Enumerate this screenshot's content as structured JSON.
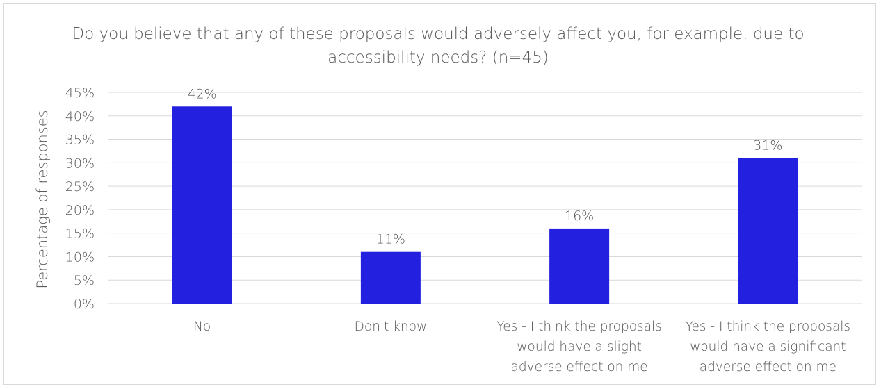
{
  "chart_data": {
    "type": "bar",
    "title": "Do you believe that any of these proposals would adversely affect you, for example, due to accessibility needs? (n=45)",
    "ylabel": "Percentage of responses",
    "xlabel": "",
    "categories": [
      "No",
      "Don't know",
      "Yes - I think the proposals would have a slight adverse effect on me",
      "Yes - I think the proposals would have a significant adverse effect on me"
    ],
    "category_lines": [
      [
        "No"
      ],
      [
        "Don't know"
      ],
      [
        "Yes - I think the proposals",
        "would have a slight",
        "adverse effect on me"
      ],
      [
        "Yes - I think the proposals",
        "would have a significant",
        "adverse effect on me"
      ]
    ],
    "values": [
      42,
      11,
      16,
      31
    ],
    "data_labels": [
      "42%",
      "11%",
      "16%",
      "31%"
    ],
    "ylim": [
      0,
      45
    ],
    "yticks": [
      0,
      5,
      10,
      15,
      20,
      25,
      30,
      35,
      40,
      45
    ],
    "ytick_labels": [
      "0%",
      "5%",
      "10%",
      "15%",
      "20%",
      "25%",
      "30%",
      "35%",
      "40%",
      "45%"
    ],
    "grid": true,
    "bar_color": "#2320DF",
    "gridline_color": "#D9D9D9",
    "text_color": "#595959"
  }
}
